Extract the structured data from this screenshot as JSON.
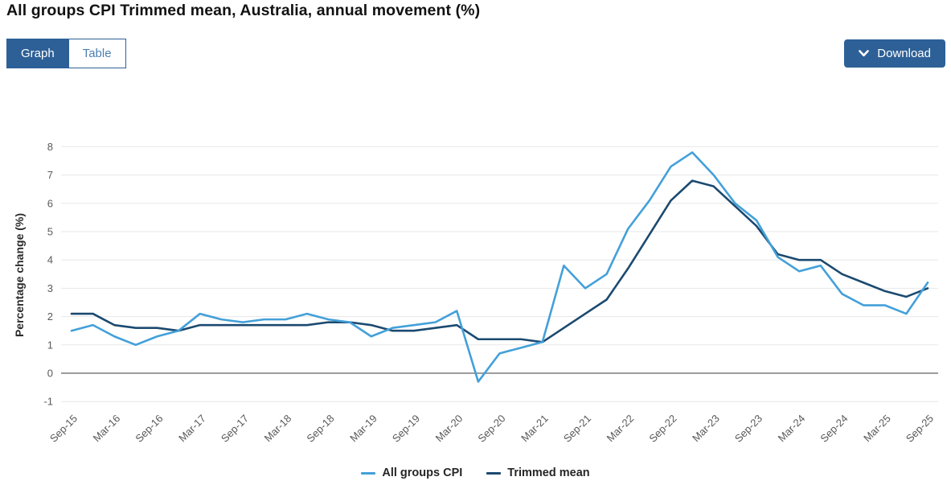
{
  "page": {
    "title": "All groups CPI Trimmed mean, Australia, annual movement (%)"
  },
  "toolbar": {
    "tabs": [
      {
        "label": "Graph",
        "active": true
      },
      {
        "label": "Table",
        "active": false
      }
    ],
    "download_label": "Download",
    "download_icon": "chevron-down"
  },
  "colors": {
    "accent_blue": "#2d6096",
    "inactive_tab_text": "#4d80b3",
    "grid_line": "#e7e7e7",
    "zero_line": "#9c9c9c",
    "axis_text": "#595959",
    "axis_title_text": "#2b2b2b",
    "series_cpi": "#43a0d9",
    "series_trimmed_mean": "#1b4a70"
  },
  "chart_data": {
    "type": "line",
    "title": "All groups CPI Trimmed mean, Australia, annual movement (%)",
    "xlabel": "",
    "ylabel": "Percentage change (%)",
    "ylim": [
      -1,
      8
    ],
    "yticks": [
      -1,
      0,
      1,
      2,
      3,
      4,
      5,
      6,
      7,
      8
    ],
    "grid": true,
    "legend_position": "bottom",
    "x_tick_every": 2,
    "categories": [
      "Sep-15",
      "Dec-15",
      "Mar-16",
      "Jun-16",
      "Sep-16",
      "Dec-16",
      "Mar-17",
      "Jun-17",
      "Sep-17",
      "Dec-17",
      "Mar-18",
      "Jun-18",
      "Sep-18",
      "Dec-18",
      "Mar-19",
      "Jun-19",
      "Sep-19",
      "Dec-19",
      "Mar-20",
      "Jun-20",
      "Sep-20",
      "Dec-20",
      "Mar-21",
      "Jun-21",
      "Sep-21",
      "Dec-21",
      "Mar-22",
      "Jun-22",
      "Sep-22",
      "Dec-22",
      "Mar-23",
      "Jun-23",
      "Sep-23",
      "Dec-23",
      "Mar-24",
      "Jun-24",
      "Sep-24",
      "Dec-24",
      "Mar-25",
      "Jun-25",
      "Sep-25"
    ],
    "x_tick_labels": [
      "Sep-15",
      "Mar-16",
      "Sep-16",
      "Mar-17",
      "Sep-17",
      "Mar-18",
      "Sep-18",
      "Mar-19",
      "Sep-19",
      "Mar-20",
      "Sep-20",
      "Mar-21",
      "Sep-21",
      "Mar-22",
      "Sep-22",
      "Mar-23",
      "Sep-23",
      "Mar-24",
      "Sep-24",
      "Mar-25",
      "Sep-25"
    ],
    "series": [
      {
        "name": "All groups CPI",
        "color": "#43a0d9",
        "values": [
          1.5,
          1.7,
          1.3,
          1.0,
          1.3,
          1.5,
          2.1,
          1.9,
          1.8,
          1.9,
          1.9,
          2.1,
          1.9,
          1.8,
          1.3,
          1.6,
          1.7,
          1.8,
          2.2,
          -0.3,
          0.7,
          0.9,
          1.1,
          3.8,
          3.0,
          3.5,
          5.1,
          6.1,
          7.3,
          7.8,
          7.0,
          6.0,
          5.4,
          4.1,
          3.6,
          3.8,
          2.8,
          2.4,
          2.4,
          2.1,
          3.2
        ]
      },
      {
        "name": "Trimmed mean",
        "color": "#1b4a70",
        "values": [
          2.1,
          2.1,
          1.7,
          1.6,
          1.6,
          1.5,
          1.7,
          1.7,
          1.7,
          1.7,
          1.7,
          1.7,
          1.8,
          1.8,
          1.7,
          1.5,
          1.5,
          1.6,
          1.7,
          1.2,
          1.2,
          1.2,
          1.1,
          1.6,
          2.1,
          2.6,
          3.7,
          4.9,
          6.1,
          6.8,
          6.6,
          5.9,
          5.2,
          4.2,
          4.0,
          4.0,
          3.5,
          3.2,
          2.9,
          2.7,
          3.0
        ]
      }
    ]
  }
}
